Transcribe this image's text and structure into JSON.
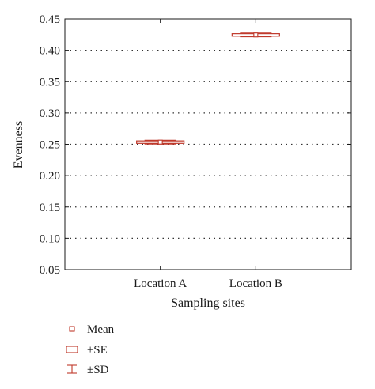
{
  "chart_data": {
    "type": "box",
    "xlabel": "Sampling sites",
    "ylabel": "Evenness",
    "categories": [
      "Location A",
      "Location B"
    ],
    "ylim": [
      0.05,
      0.45
    ],
    "yticks": [
      "0.05",
      "0.10",
      "0.15",
      "0.20",
      "0.25",
      "0.30",
      "0.35",
      "0.40",
      "0.45"
    ],
    "grid": "horizontal-dotted",
    "series": [
      {
        "category": "Location A",
        "mean": 0.2535,
        "se_low": 0.2515,
        "se_high": 0.2555,
        "sd_low": 0.2505,
        "sd_high": 0.2565
      },
      {
        "category": "Location B",
        "mean": 0.4245,
        "se_low": 0.4225,
        "se_high": 0.4265,
        "sd_low": 0.4215,
        "sd_high": 0.4275
      }
    ],
    "legend": {
      "placement": "bottom-left",
      "items": [
        {
          "label": "Mean",
          "marker": "mean"
        },
        {
          "label": "±SE",
          "marker": "se"
        },
        {
          "label": "±SD",
          "marker": "sd"
        }
      ]
    },
    "color": "#c0392b"
  }
}
